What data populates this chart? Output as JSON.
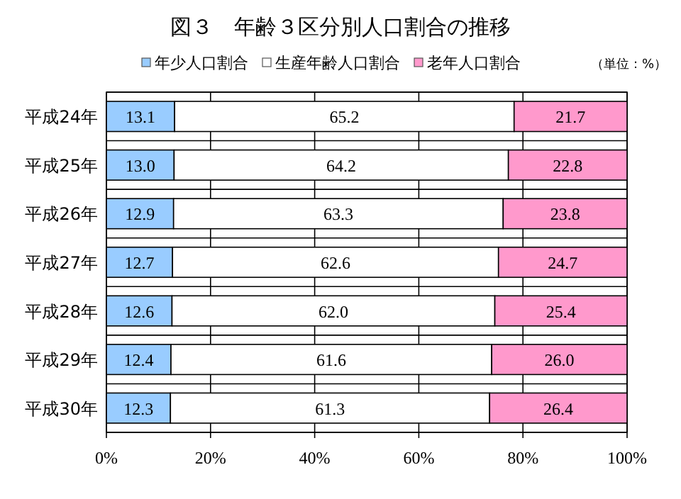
{
  "chart_data": {
    "type": "bar",
    "orientation": "horizontal",
    "stacked": true,
    "title": "図３　年齢３区分別人口割合の推移",
    "categories": [
      "平成24年",
      "平成25年",
      "平成26年",
      "平成27年",
      "平成28年",
      "平成29年",
      "平成30年"
    ],
    "series": [
      {
        "name": "年少人口割合",
        "color": "#99ccff",
        "values": [
          13.1,
          13.0,
          12.9,
          12.7,
          12.6,
          12.4,
          12.3
        ],
        "value_labels": [
          "13.1",
          "13.0",
          "12.9",
          "12.7",
          "12.6",
          "12.4",
          "12.3"
        ]
      },
      {
        "name": "生産年齢人口割合",
        "color": "#ffffff",
        "values": [
          65.2,
          64.2,
          63.3,
          62.6,
          62.0,
          61.6,
          61.3
        ],
        "value_labels": [
          "65.2",
          "64.2",
          "63.3",
          "62.6",
          "62.0",
          "61.6",
          "61.3"
        ]
      },
      {
        "name": "老年人口割合",
        "color": "#ff99cc",
        "values": [
          21.7,
          22.8,
          23.8,
          24.7,
          25.4,
          26.0,
          26.4
        ],
        "value_labels": [
          "21.7",
          "22.8",
          "23.8",
          "24.7",
          "25.4",
          "26.0",
          "26.4"
        ]
      }
    ],
    "xlim": [
      0,
      100
    ],
    "xticks": [
      {
        "value": 0,
        "label": "0%"
      },
      {
        "value": 20,
        "label": "20%"
      },
      {
        "value": 40,
        "label": "40%"
      },
      {
        "value": 60,
        "label": "60%"
      },
      {
        "value": 80,
        "label": "80%"
      },
      {
        "value": 100,
        "label": "100%"
      }
    ],
    "grid": true,
    "legend": "top",
    "annotations": [
      "（単位：%）"
    ]
  }
}
